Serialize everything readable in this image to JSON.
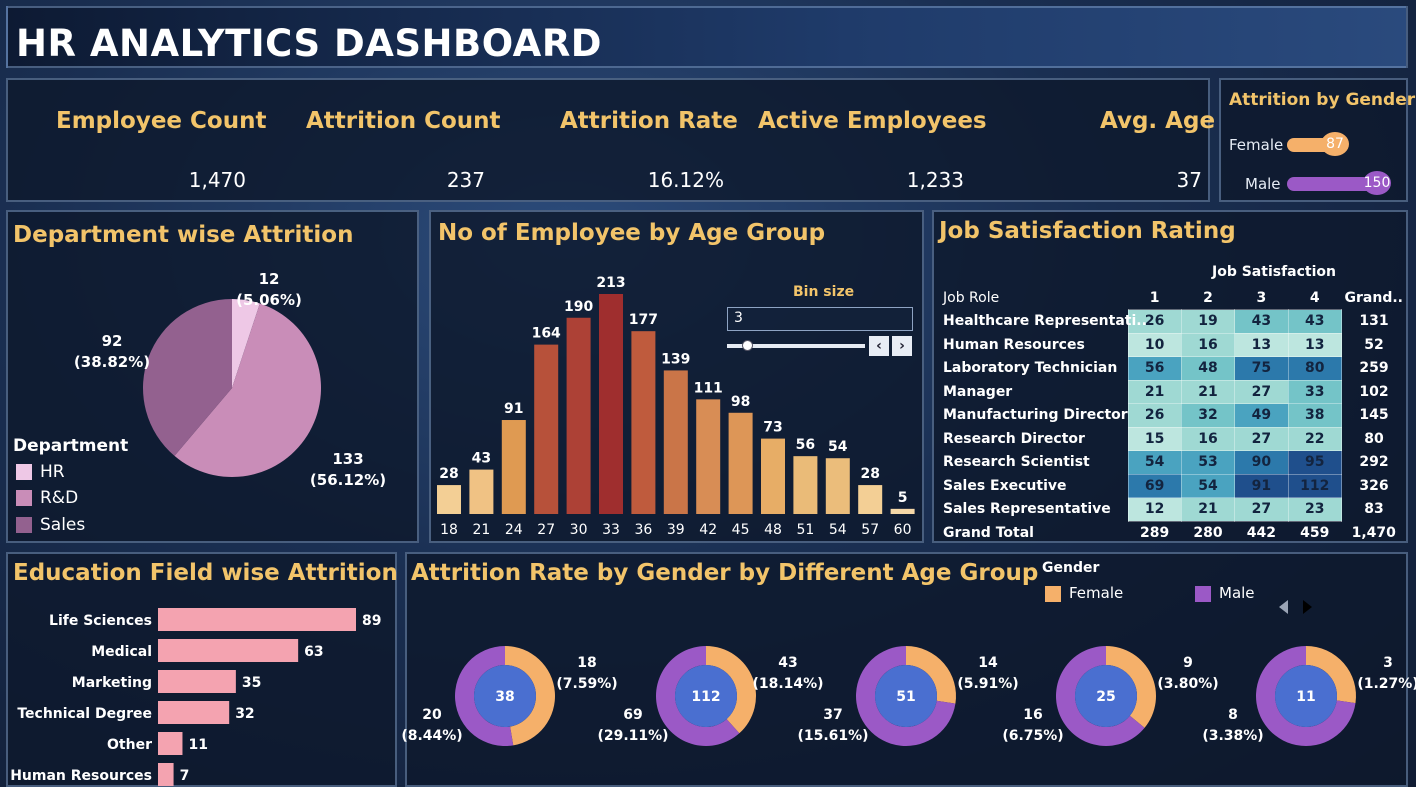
{
  "header": {
    "title": "HR ANALYTICS DASHBOARD"
  },
  "kpis": [
    {
      "label": "Employee Count",
      "value": "1,470"
    },
    {
      "label": "Attrition Count",
      "value": "237"
    },
    {
      "label": "Attrition Rate",
      "value": "16.12%"
    },
    {
      "label": "Active Employees",
      "value": "1,233"
    },
    {
      "label": "Avg. Age",
      "value": "37"
    }
  ],
  "gender_attrition": {
    "title": "Attrition by Gender",
    "rows": [
      {
        "label": "Female",
        "value": 87,
        "color": "#f5b06a"
      },
      {
        "label": "Male",
        "value": 150,
        "color": "#9b59c6"
      }
    ],
    "max": 150
  },
  "chart_data": [
    {
      "id": "dept",
      "type": "pie",
      "title": "Department wise Attrition",
      "legend_title": "Department",
      "categories": [
        "HR",
        "R&D",
        "Sales"
      ],
      "values": [
        12,
        133,
        92
      ],
      "labels": [
        {
          "count": "12",
          "pct": "(5.06%)"
        },
        {
          "count": "133",
          "pct": "(56.12%)"
        },
        {
          "count": "92",
          "pct": "(38.82%)"
        }
      ],
      "colors": [
        "#eec8e6",
        "#c98db8",
        "#93618f"
      ]
    },
    {
      "id": "age",
      "type": "bar",
      "title": "No of Employee by Age Group",
      "categories": [
        "18",
        "21",
        "24",
        "27",
        "30",
        "33",
        "36",
        "39",
        "42",
        "45",
        "48",
        "51",
        "54",
        "57",
        "60"
      ],
      "values": [
        28,
        43,
        91,
        164,
        190,
        213,
        177,
        139,
        111,
        98,
        73,
        56,
        54,
        28,
        5
      ],
      "colors": [
        "#f3cf95",
        "#f0c284",
        "#df9a52",
        "#b7513a",
        "#ad4136",
        "#9f2e2e",
        "#bf5b3d",
        "#ca7548",
        "#d88d55",
        "#dd9657",
        "#e7ad66",
        "#eabb78",
        "#ebbd7b",
        "#f3cf95",
        "#f5d8a8"
      ],
      "bin_size": {
        "label": "Bin size",
        "value": "3",
        "prev": "‹",
        "next": "›"
      }
    },
    {
      "id": "jobsat",
      "type": "table",
      "title": "Job Satisfaction Rating",
      "column_group": "Job Satisfaction",
      "row_header": "Job Role",
      "columns": [
        "1",
        "2",
        "3",
        "4",
        "Grand.."
      ],
      "rows": [
        {
          "role": "Healthcare Representati..",
          "values": [
            26,
            19,
            43,
            43
          ],
          "total": "131"
        },
        {
          "role": "Human Resources",
          "values": [
            10,
            16,
            13,
            13
          ],
          "total": "52"
        },
        {
          "role": "Laboratory Technician",
          "values": [
            56,
            48,
            75,
            80
          ],
          "total": "259"
        },
        {
          "role": "Manager",
          "values": [
            21,
            21,
            27,
            33
          ],
          "total": "102"
        },
        {
          "role": "Manufacturing Director",
          "values": [
            26,
            32,
            49,
            38
          ],
          "total": "145"
        },
        {
          "role": "Research Director",
          "values": [
            15,
            16,
            27,
            22
          ],
          "total": "80"
        },
        {
          "role": "Research Scientist",
          "values": [
            54,
            53,
            90,
            95
          ],
          "total": "292"
        },
        {
          "role": "Sales Executive",
          "values": [
            69,
            54,
            91,
            112
          ],
          "total": "326"
        },
        {
          "role": "Sales Representative",
          "values": [
            12,
            21,
            27,
            23
          ],
          "total": "83"
        }
      ],
      "grand_total": {
        "label": "Grand Total",
        "values": [
          "289",
          "280",
          "442",
          "459"
        ],
        "total": "1,470"
      }
    },
    {
      "id": "edu",
      "type": "bar",
      "orientation": "horizontal",
      "title": "Education Field wise Attrition",
      "categories": [
        "Life Sciences",
        "Medical",
        "Marketing",
        "Technical Degree",
        "Other",
        "Human Resources"
      ],
      "values": [
        89,
        63,
        35,
        32,
        11,
        7
      ],
      "color": "#f4a3b0"
    },
    {
      "id": "genderage",
      "type": "pie",
      "variant": "donut",
      "title": "Attrition Rate by Gender by Different Age Group",
      "legend_title": "Gender",
      "legend": [
        {
          "label": "Female",
          "color": "#f5b06a"
        },
        {
          "label": "Male",
          "color": "#9b59c6"
        }
      ],
      "groups": [
        {
          "total": "38",
          "female": 18,
          "male": 20,
          "female_label": [
            "18",
            "(7.59%)"
          ],
          "male_label": [
            "20",
            "(8.44%)"
          ]
        },
        {
          "total": "112",
          "female": 43,
          "male": 69,
          "female_label": [
            "43",
            "(18.14%)"
          ],
          "male_label": [
            "69",
            "(29.11%)"
          ]
        },
        {
          "total": "51",
          "female": 14,
          "male": 37,
          "female_label": [
            "14",
            "(5.91%)"
          ],
          "male_label": [
            "37",
            "(15.61%)"
          ]
        },
        {
          "total": "25",
          "female": 9,
          "male": 16,
          "female_label": [
            "9",
            "(3.80%)"
          ],
          "male_label": [
            "16",
            "(6.75%)"
          ]
        },
        {
          "total": "11",
          "female": 3,
          "male": 8,
          "female_label": [
            "3",
            "(1.27%)"
          ],
          "male_label": [
            "8",
            "(3.38%)"
          ]
        }
      ],
      "center_color": "#4a6fd0"
    }
  ]
}
